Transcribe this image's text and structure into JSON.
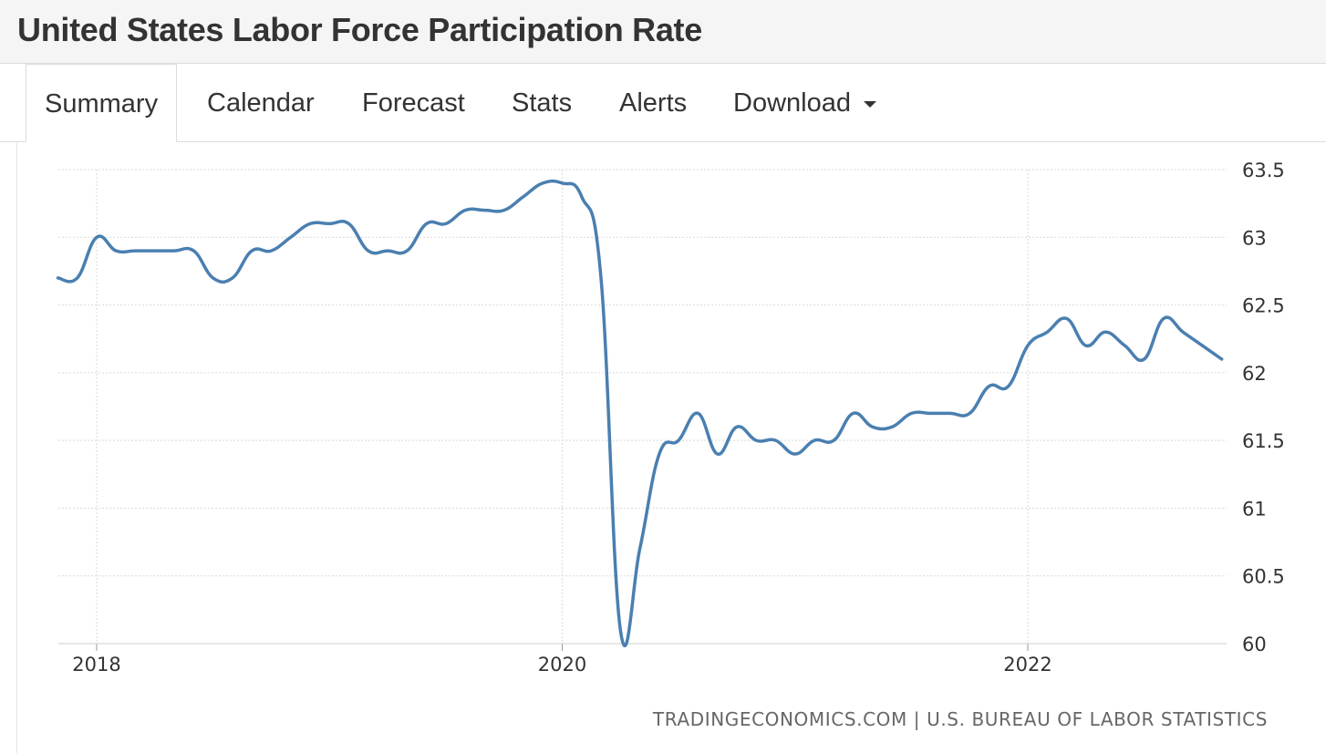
{
  "header": {
    "title": "United States Labor Force Participation Rate"
  },
  "tabs": [
    {
      "label": "Summary",
      "active": true
    },
    {
      "label": "Calendar"
    },
    {
      "label": "Forecast"
    },
    {
      "label": "Stats"
    },
    {
      "label": "Alerts"
    },
    {
      "label": "Download",
      "has_dropdown": true
    }
  ],
  "attribution": "TRADINGECONOMICS.COM | U.S. BUREAU OF LABOR STATISTICS",
  "colors": {
    "line": "#4a7fb0",
    "grid": "#d9d9d9",
    "text": "#333333"
  },
  "chart_data": {
    "type": "line",
    "title": "",
    "xlabel": "",
    "ylabel": "",
    "x_tick_labels": [
      "2018",
      "2020",
      "2022"
    ],
    "y_tick_labels": [
      "60",
      "60.5",
      "61",
      "61.5",
      "62",
      "62.5",
      "63",
      "63.5"
    ],
    "ylim": [
      60,
      63.5
    ],
    "y_axis_side": "right",
    "grid": true,
    "x": [
      "2017-11",
      "2017-12",
      "2018-01",
      "2018-02",
      "2018-03",
      "2018-04",
      "2018-05",
      "2018-06",
      "2018-07",
      "2018-08",
      "2018-09",
      "2018-10",
      "2018-11",
      "2018-12",
      "2019-01",
      "2019-02",
      "2019-03",
      "2019-04",
      "2019-05",
      "2019-06",
      "2019-07",
      "2019-08",
      "2019-09",
      "2019-10",
      "2019-11",
      "2019-12",
      "2020-01",
      "2020-02",
      "2020-03",
      "2020-04",
      "2020-05",
      "2020-06",
      "2020-07",
      "2020-08",
      "2020-09",
      "2020-10",
      "2020-11",
      "2020-12",
      "2021-01",
      "2021-02",
      "2021-03",
      "2021-04",
      "2021-05",
      "2021-06",
      "2021-07",
      "2021-08",
      "2021-09",
      "2021-10",
      "2021-11",
      "2021-12",
      "2022-01",
      "2022-02",
      "2022-03",
      "2022-04",
      "2022-05",
      "2022-06",
      "2022-07",
      "2022-08",
      "2022-09",
      "2022-10",
      "2022-11"
    ],
    "series": [
      {
        "values": [
          62.7,
          62.7,
          63.0,
          62.9,
          62.9,
          62.9,
          62.9,
          62.9,
          62.7,
          62.7,
          62.9,
          62.9,
          63.0,
          63.1,
          63.1,
          63.1,
          62.9,
          62.9,
          62.9,
          63.1,
          63.1,
          63.2,
          63.2,
          63.2,
          63.3,
          63.4,
          63.4,
          63.3,
          62.7,
          60.1,
          60.7,
          61.4,
          61.5,
          61.7,
          61.4,
          61.6,
          61.5,
          61.5,
          61.4,
          61.5,
          61.5,
          61.7,
          61.6,
          61.6,
          61.7,
          61.7,
          61.7,
          61.7,
          61.9,
          61.9,
          62.2,
          62.3,
          62.4,
          62.2,
          62.3,
          62.2,
          62.1,
          62.4,
          62.3,
          62.2,
          62.1
        ]
      }
    ]
  }
}
